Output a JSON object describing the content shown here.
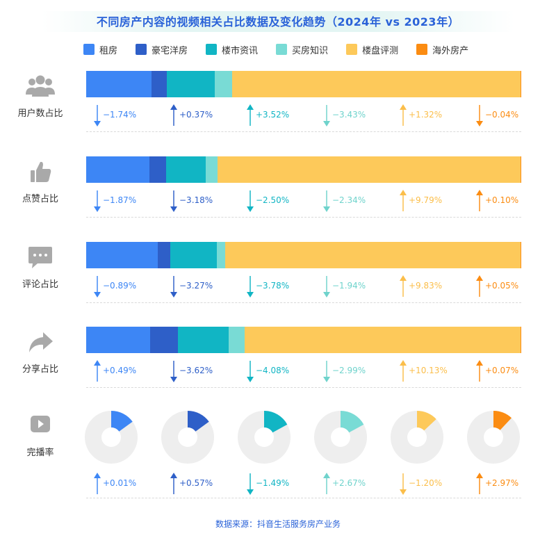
{
  "title": "不同房产内容的视频相关占比数据及变化趋势（2024年 vs 2023年）",
  "source": "数据来源：抖音生活服务房产业务",
  "colors": {
    "series": [
      "#3d86f5",
      "#2e5fc8",
      "#11b5c4",
      "#79dbd5",
      "#fdc95a",
      "#fb8c12"
    ],
    "change_text": [
      "#3d86f5",
      "#2e5fc8",
      "#11b5c4",
      "#6fd3cc",
      "#fbbe4a",
      "#fb8c12"
    ]
  },
  "legend": [
    {
      "name": "租房"
    },
    {
      "name": "豪宅洋房"
    },
    {
      "name": "楼市资讯"
    },
    {
      "name": "买房知识"
    },
    {
      "name": "楼盘评测"
    },
    {
      "name": "海外房产"
    }
  ],
  "rows": [
    {
      "label": "用户数占比",
      "icon": "users-icon"
    },
    {
      "label": "点赞占比",
      "icon": "thumbs-up-icon"
    },
    {
      "label": "评论占比",
      "icon": "comment-icon"
    },
    {
      "label": "分享占比",
      "icon": "share-icon"
    },
    {
      "label": "完播率",
      "icon": "video-play-icon"
    }
  ],
  "chart_data": {
    "type": "bar",
    "stacked": true,
    "title": "不同房产内容的视频相关占比数据及变化趋势（2024年 vs 2023年）",
    "categories": [
      "用户数占比",
      "点赞占比",
      "评论占比",
      "分享占比"
    ],
    "series": [
      {
        "name": "租房",
        "values": [
          15,
          14.5,
          16.5,
          14.7
        ]
      },
      {
        "name": "豪宅洋房",
        "values": [
          3.5,
          3.8,
          2.8,
          6.4
        ]
      },
      {
        "name": "楼市资讯",
        "values": [
          11,
          9.1,
          10.8,
          11.6
        ]
      },
      {
        "name": "买房知识",
        "values": [
          4,
          2.8,
          1.9,
          3.8
        ]
      },
      {
        "name": "楼盘评测",
        "values": [
          66.3,
          69.6,
          67.8,
          63.3
        ]
      },
      {
        "name": "海外房产",
        "values": [
          0.2,
          0.2,
          0.2,
          0.2
        ]
      }
    ],
    "completion_rate": {
      "type": "pie",
      "values": [
        15,
        15,
        17,
        17,
        13,
        12
      ]
    },
    "changes": [
      [
        "−1.74%",
        "+0.37%",
        "+3.52%",
        "−3.43%",
        "+1.32%",
        "−0.04%"
      ],
      [
        "−1.87%",
        "−3.18%",
        "−2.50%",
        "−2.34%",
        "+9.79%",
        "+0.10%"
      ],
      [
        "−0.89%",
        "−3.27%",
        "−3.78%",
        "−1.94%",
        "+9.83%",
        "+0.05%"
      ],
      [
        "+0.49%",
        "−3.62%",
        "−4.08%",
        "−2.99%",
        "+10.13%",
        "+0.07%"
      ],
      [
        "+0.01%",
        "+0.57%",
        "−1.49%",
        "+2.67%",
        "−1.20%",
        "+2.97%"
      ]
    ]
  }
}
